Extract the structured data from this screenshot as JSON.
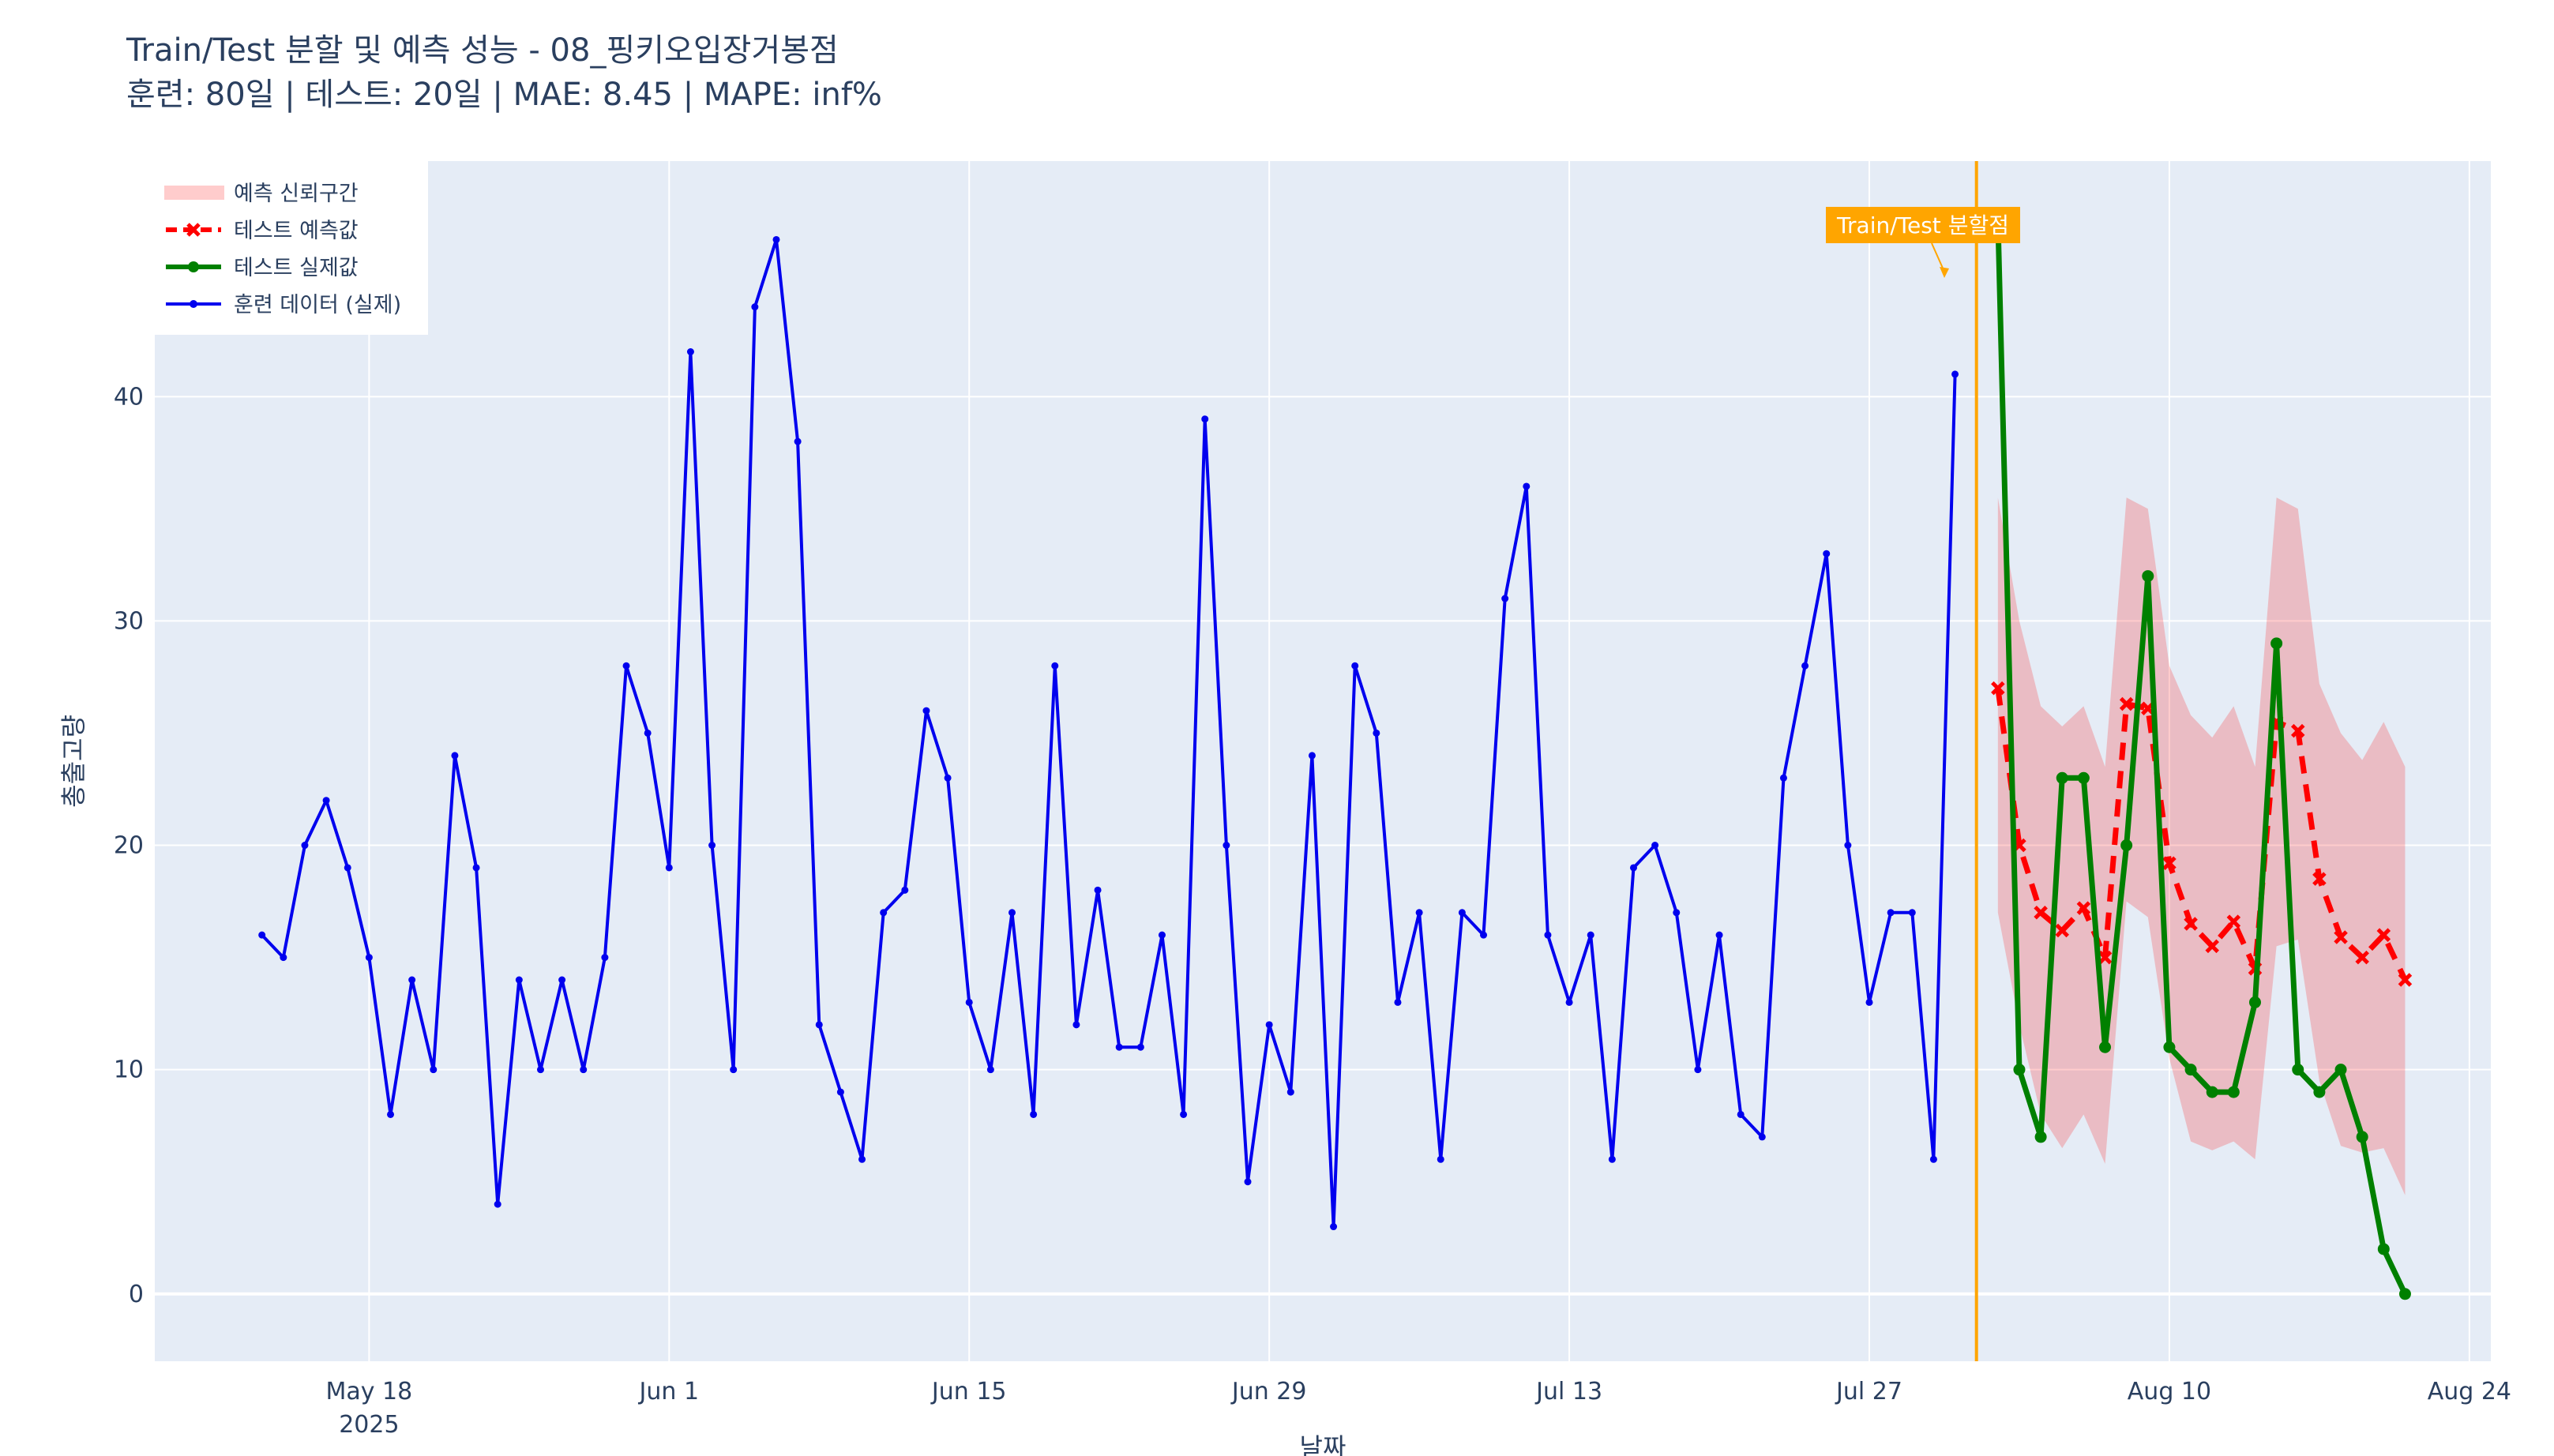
{
  "chart_data": {
    "type": "line",
    "title": "Train/Test 분할 및 예측 성능 - 08_핑키오입장거봉점",
    "subtitle": "훈련: 80일 | 테스트: 20일 | MAE: 8.45 | MAPE: inf%",
    "xlabel": "날짜",
    "ylabel": "총출고량",
    "ylim": [
      -3,
      50.5
    ],
    "xlim": [
      "2025-05-08",
      "2025-08-25"
    ],
    "x_ticks": [
      {
        "date": "2025-05-18",
        "label": "May 18",
        "sublabel": "2025"
      },
      {
        "date": "2025-06-01",
        "label": "Jun 1",
        "sublabel": ""
      },
      {
        "date": "2025-06-15",
        "label": "Jun 15",
        "sublabel": ""
      },
      {
        "date": "2025-06-29",
        "label": "Jun 29",
        "sublabel": ""
      },
      {
        "date": "2025-07-13",
        "label": "Jul 13",
        "sublabel": ""
      },
      {
        "date": "2025-07-27",
        "label": "Jul 27",
        "sublabel": ""
      },
      {
        "date": "2025-08-10",
        "label": "Aug 10",
        "sublabel": ""
      },
      {
        "date": "2025-08-24",
        "label": "Aug 24",
        "sublabel": ""
      }
    ],
    "y_ticks": [
      0,
      10,
      20,
      30,
      40
    ],
    "grid": true,
    "legend_position": "top-left",
    "split": {
      "date": "2025-08-01",
      "label": "Train/Test 분할점",
      "color": "#FFA500"
    },
    "series": [
      {
        "name": "훈련 데이터 (실제)",
        "style": "line-markers",
        "color": "#0000EE",
        "start_date": "2025-05-13",
        "values": [
          16,
          15,
          20,
          22,
          19,
          15,
          8,
          14,
          10,
          24,
          19,
          4,
          14,
          10,
          14,
          10,
          15,
          28,
          25,
          19,
          42,
          20,
          10,
          44,
          47,
          38,
          12,
          9,
          6,
          17,
          18,
          26,
          23,
          13,
          10,
          17,
          8,
          28,
          12,
          18,
          11,
          11,
          16,
          8,
          39,
          20,
          5,
          12,
          9,
          24,
          3,
          28,
          25,
          13,
          17,
          6,
          17,
          16,
          31,
          36,
          16,
          13,
          16,
          6,
          19,
          20,
          17,
          10,
          16,
          8,
          7,
          23,
          28,
          33,
          20,
          13,
          17,
          17,
          6,
          41
        ]
      },
      {
        "name": "테스트 실제값",
        "style": "line-markers",
        "color": "#008000",
        "start_date": "2025-08-02",
        "values": [
          48,
          10,
          7,
          23,
          23,
          11,
          20,
          32,
          11,
          10,
          9,
          9,
          13,
          29,
          10,
          9,
          10,
          7,
          2,
          0
        ]
      },
      {
        "name": "테스트 예측값",
        "style": "dash-x",
        "color": "#FF0000",
        "start_date": "2025-08-02",
        "values": [
          27,
          20,
          17,
          16.2,
          17.2,
          15,
          26.3,
          26.1,
          19.2,
          16.5,
          15.5,
          16.6,
          14.5,
          25.5,
          25.1,
          18.5,
          15.9,
          15,
          16,
          14
        ]
      }
    ],
    "confidence_band": {
      "name": "예측 신뢰구간",
      "color": "rgba(255,0,0,0.2)",
      "start_date": "2025-08-02",
      "upper": [
        35.5,
        30,
        26.2,
        25.3,
        26.2,
        23.5,
        35.5,
        35,
        28,
        25.8,
        24.8,
        26.2,
        23.5,
        35.5,
        35,
        27.2,
        25,
        23.8,
        25.5,
        23.5
      ],
      "lower": [
        17,
        12,
        8,
        6.5,
        8,
        5.8,
        17.5,
        16.8,
        10.5,
        6.8,
        6.4,
        6.8,
        6,
        15.5,
        15.8,
        9.5,
        6.6,
        6.3,
        6.5,
        4.4
      ]
    }
  }
}
